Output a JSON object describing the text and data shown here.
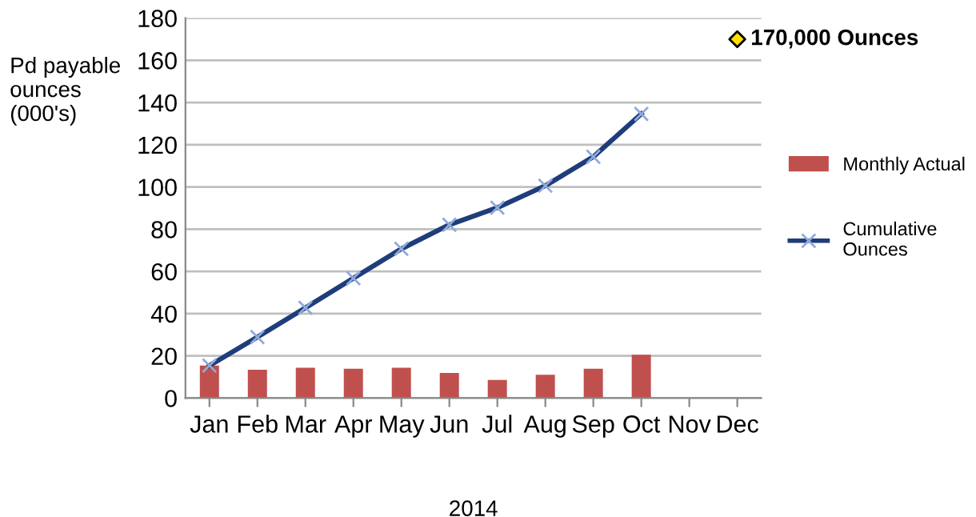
{
  "chart_data": {
    "type": "bar",
    "xlabel": "2014",
    "ylabel": "Pd payable\nounces\n(000's)",
    "categories": [
      "Jan",
      "Feb",
      "Mar",
      "Apr",
      "May",
      "Jun",
      "Jul",
      "Aug",
      "Sep",
      "Oct",
      "Nov",
      "Dec"
    ],
    "series": [
      {
        "name": "Monthly Actual",
        "color": "#c0504d",
        "values": [
          15.4,
          13.4,
          14.4,
          13.9,
          14.4,
          11.9,
          8.6,
          11.1,
          13.9,
          20.5,
          null,
          null
        ]
      },
      {
        "name": "Cumulative Ounces",
        "type": "line",
        "color": "#1f3d7a",
        "marker": "cross",
        "values": [
          15.4,
          28.9,
          42.8,
          56.8,
          70.7,
          82.1,
          90.2,
          100.6,
          114.3,
          134.6,
          null,
          null
        ]
      },
      {
        "type": "scatter",
        "color": "#ffe100",
        "marker": "diamond",
        "values": [
          null,
          null,
          null,
          null,
          null,
          null,
          null,
          null,
          null,
          null,
          null,
          170
        ]
      }
    ],
    "annotations": [
      {
        "text": "170,000 Ounces",
        "x": "Dec",
        "y": 170
      }
    ],
    "ylim": [
      0,
      180
    ],
    "yticks": [
      0,
      20,
      40,
      60,
      80,
      100,
      120,
      140,
      160,
      180
    ],
    "grid": "y",
    "legend": "right"
  }
}
